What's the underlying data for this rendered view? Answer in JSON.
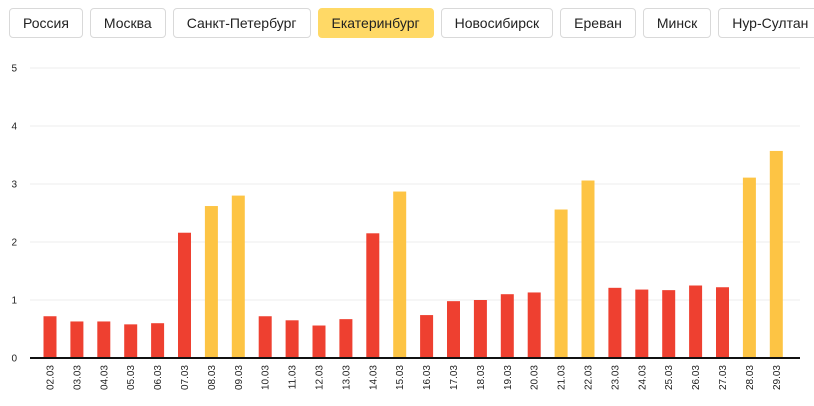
{
  "tabs": [
    {
      "label": "Россия",
      "active": false
    },
    {
      "label": "Москва",
      "active": false
    },
    {
      "label": "Санкт-Петербург",
      "active": false
    },
    {
      "label": "Екатеринбург",
      "active": true
    },
    {
      "label": "Новосибирск",
      "active": false
    },
    {
      "label": "Ереван",
      "active": false
    },
    {
      "label": "Минск",
      "active": false
    },
    {
      "label": "Нур-Султан",
      "active": false
    }
  ],
  "colors": {
    "weekday": "#ee4030",
    "weekend": "#fdc444",
    "active_tab": "#ffd966"
  },
  "chart_data": {
    "type": "bar",
    "title": "",
    "xlabel": "",
    "ylabel": "",
    "ylim": [
      0,
      5
    ],
    "yticks": [
      0,
      1,
      2,
      3,
      4,
      5
    ],
    "grid": true,
    "categories": [
      "02.03",
      "03.03",
      "04.03",
      "05.03",
      "06.03",
      "07.03",
      "08.03",
      "09.03",
      "10.03",
      "11.03",
      "12.03",
      "13.03",
      "14.03",
      "15.03",
      "16.03",
      "17.03",
      "18.03",
      "19.03",
      "20.03",
      "21.03",
      "22.03",
      "23.03",
      "24.03",
      "25.03",
      "26.03",
      "27.03",
      "28.03",
      "29.03"
    ],
    "values": [
      0.72,
      0.63,
      0.63,
      0.58,
      0.6,
      2.16,
      2.62,
      2.8,
      0.72,
      0.65,
      0.56,
      0.67,
      2.15,
      2.87,
      0.74,
      0.98,
      1.0,
      1.1,
      1.13,
      2.56,
      3.06,
      1.21,
      1.18,
      1.17,
      1.25,
      1.22,
      3.11,
      3.57
    ],
    "bar_kind": [
      "weekday",
      "weekday",
      "weekday",
      "weekday",
      "weekday",
      "weekday",
      "weekend",
      "weekend",
      "weekday",
      "weekday",
      "weekday",
      "weekday",
      "weekday",
      "weekend",
      "weekday",
      "weekday",
      "weekday",
      "weekday",
      "weekday",
      "weekend",
      "weekend",
      "weekday",
      "weekday",
      "weekday",
      "weekday",
      "weekday",
      "weekend",
      "weekend"
    ]
  }
}
